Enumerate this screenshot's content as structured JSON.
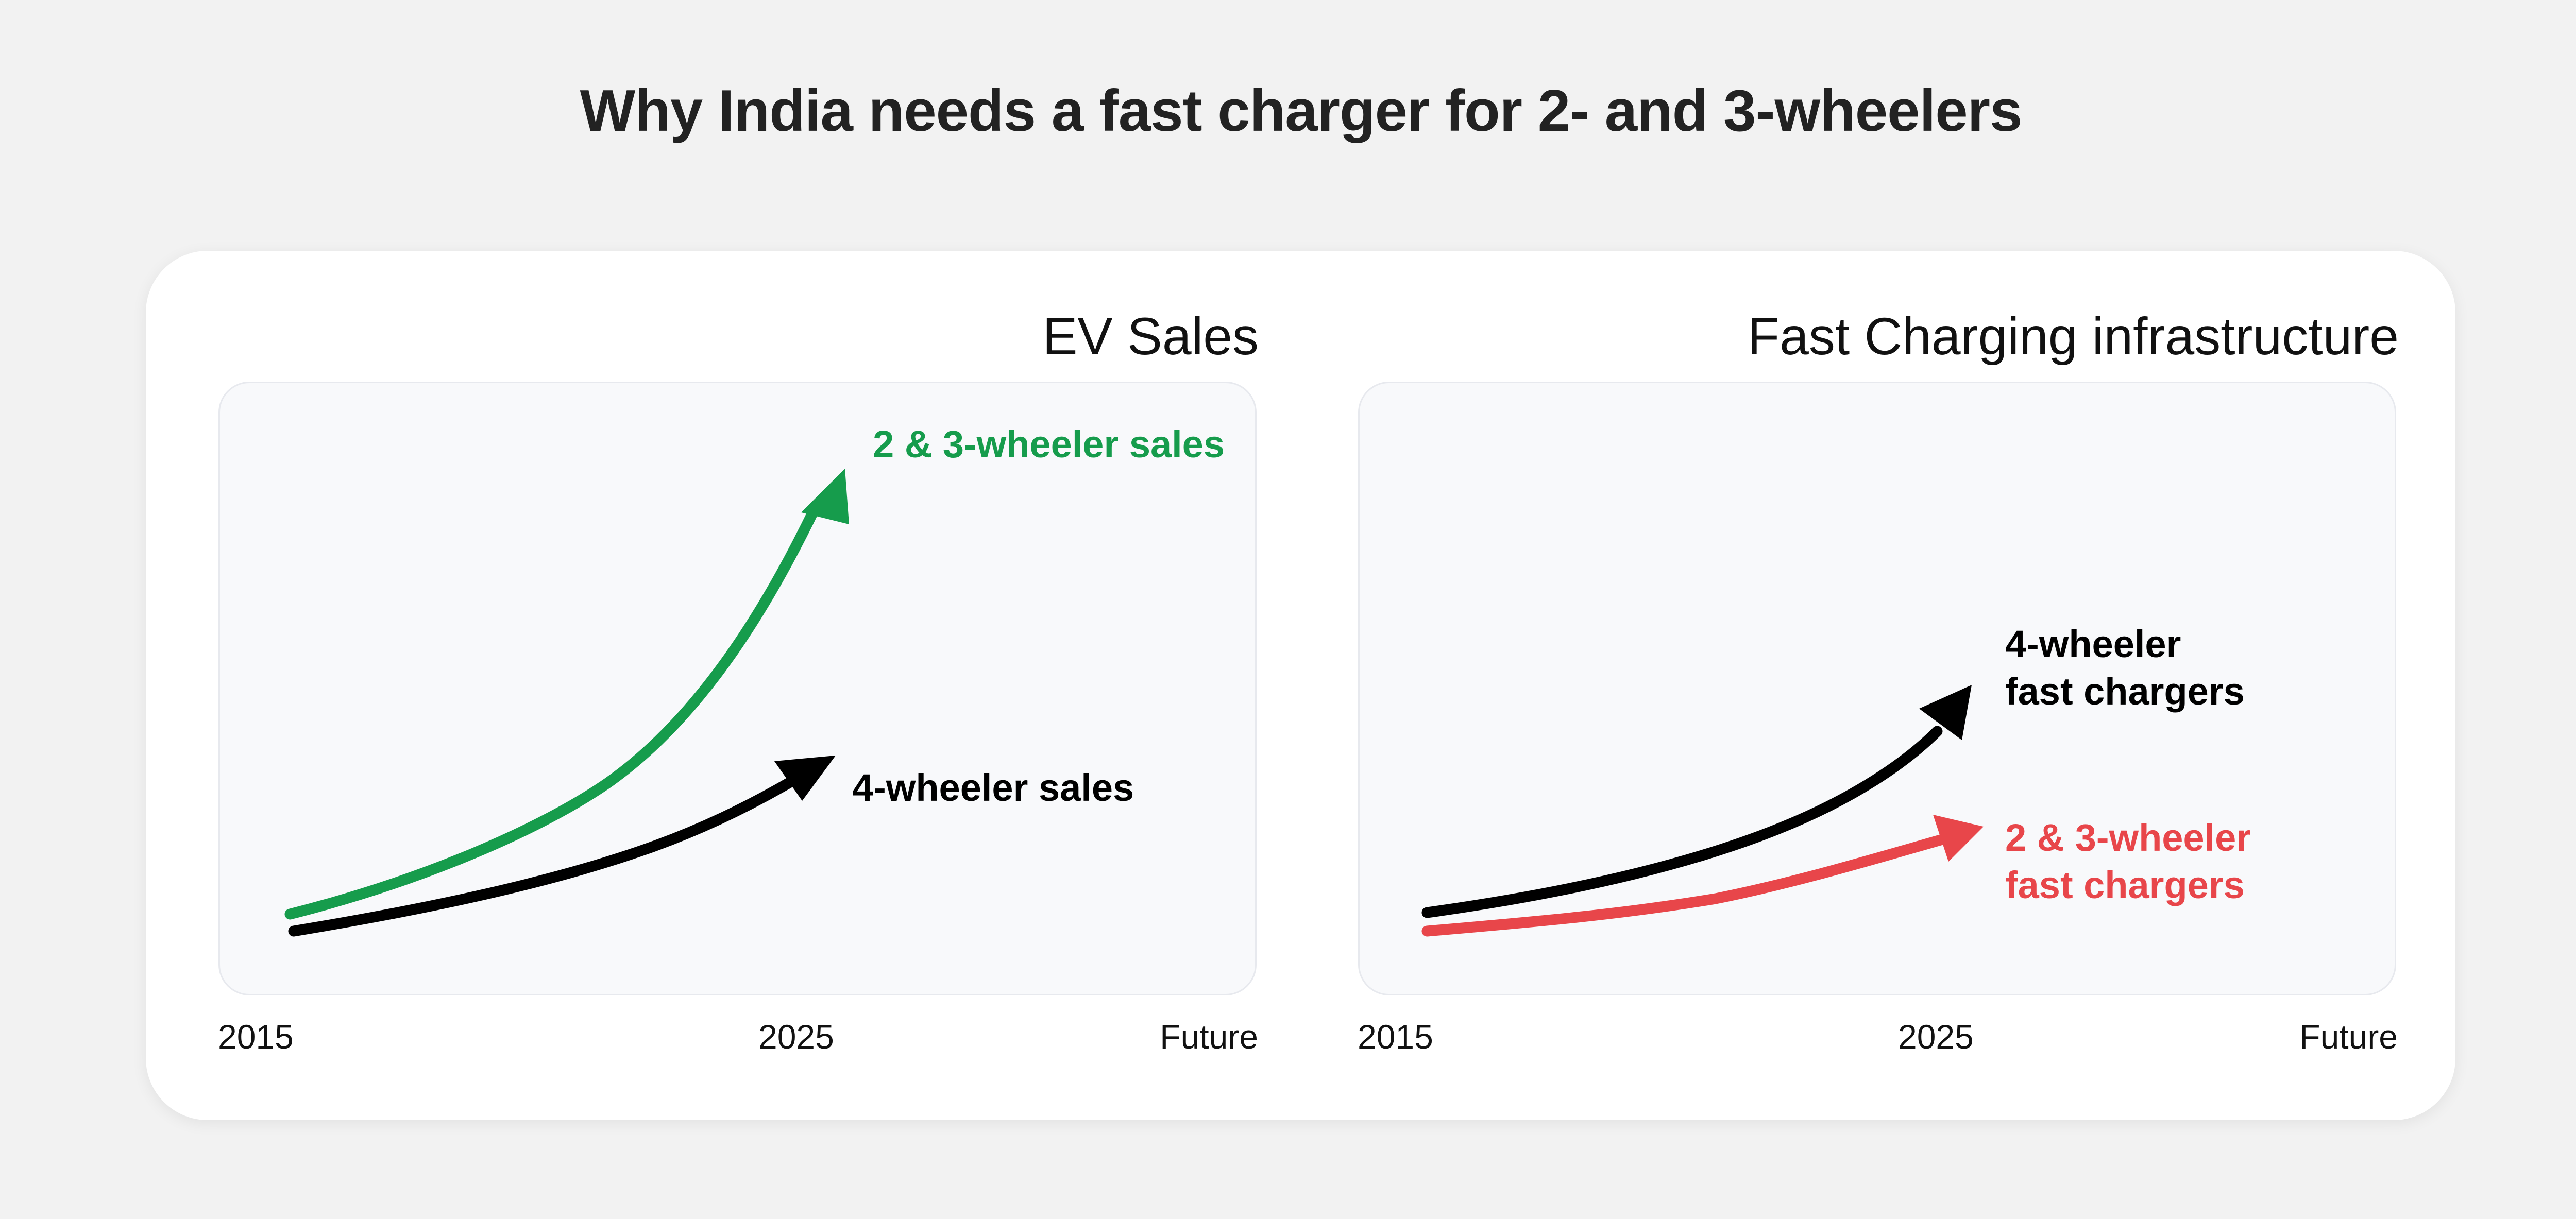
{
  "title": "Why India needs a fast charger for 2- and 3-wheelers",
  "chart_data": [
    {
      "type": "line",
      "title": "EV Sales",
      "x_ticks": [
        "2015",
        "2025",
        "Future"
      ],
      "series": [
        {
          "name": "2 & 3-wheeler sales",
          "color": "#169c4c"
        },
        {
          "name": "4-wheeler sales",
          "color": "#000000"
        }
      ]
    },
    {
      "type": "line",
      "title": "Fast Charging infrastructure",
      "x_ticks": [
        "2015",
        "2025",
        "Future"
      ],
      "series": [
        {
          "name_lines": [
            "4-wheeler",
            "fast chargers"
          ],
          "color": "#000000"
        },
        {
          "name_lines": [
            "2 & 3-wheeler",
            "fast chargers"
          ],
          "color": "#e8464a"
        }
      ]
    }
  ]
}
